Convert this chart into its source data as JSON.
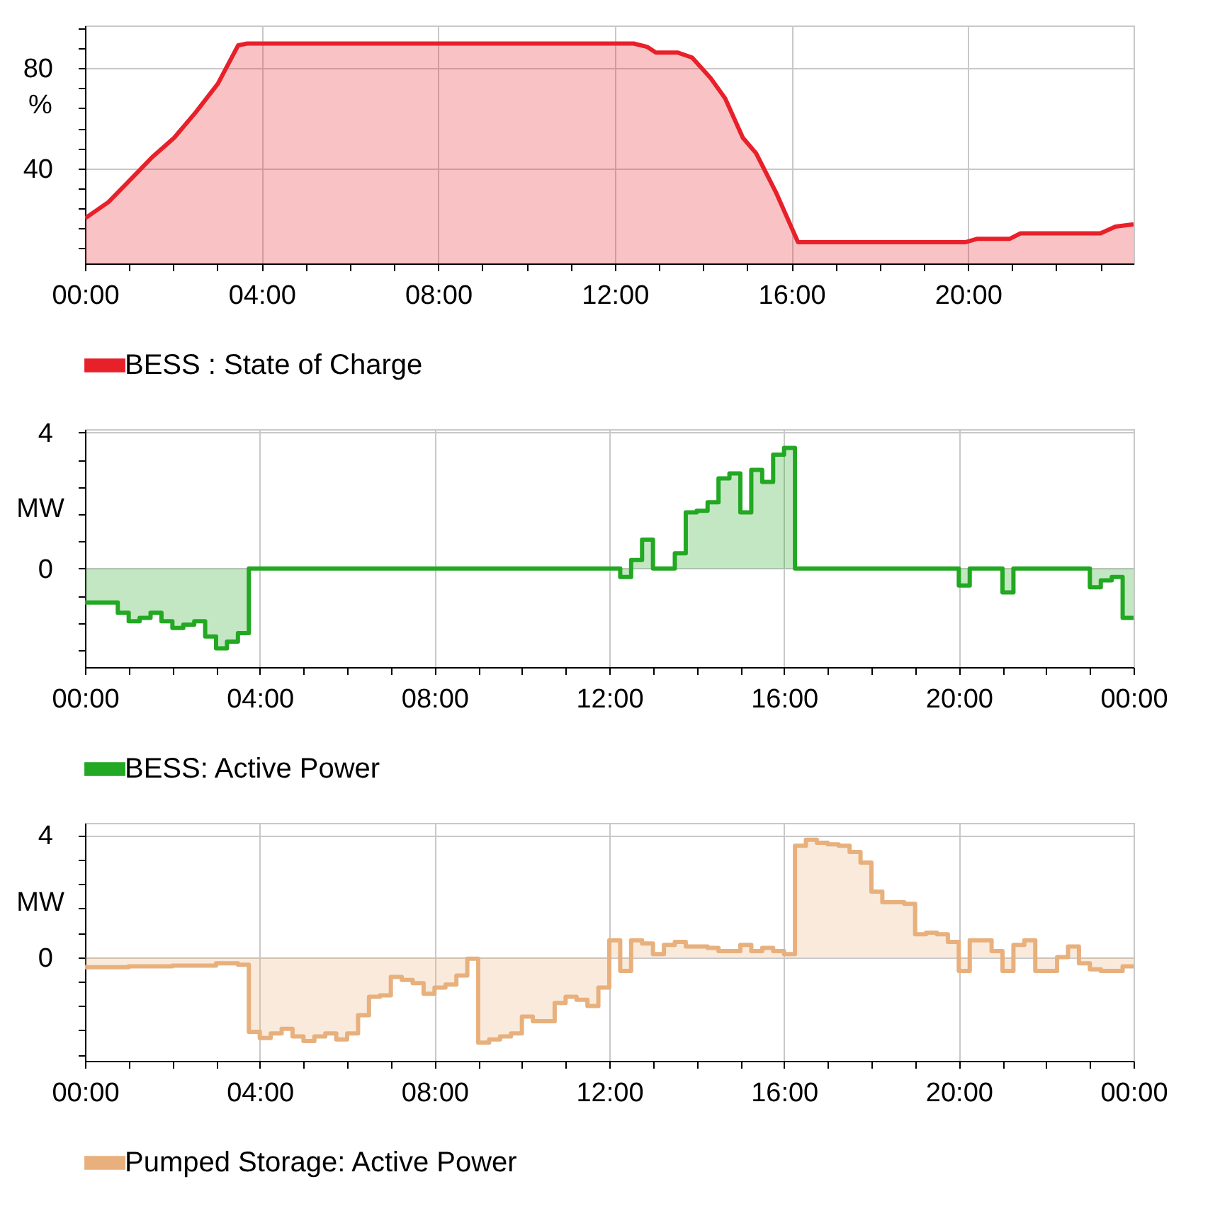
{
  "chart_data": [
    {
      "type": "area",
      "ylabel": "%",
      "legend": "bottom",
      "grid": true,
      "marker": "none",
      "line_style": "solid",
      "x": [
        0,
        0.53,
        1.02,
        1.52,
        2.02,
        2.51,
        3.01,
        3.47,
        3.67,
        12.43,
        12.73,
        12.93,
        13.42,
        13.75,
        14.17,
        14.5,
        14.9,
        15.2,
        15.65,
        16.15,
        19.95,
        20.2,
        20.94,
        21.19,
        23.0,
        23.34,
        23.75
      ],
      "series": [
        {
          "name": "BESS : State of Charge",
          "color": "#e8202a",
          "values": [
            20,
            26.5,
            35.3,
            44.4,
            52.2,
            62.4,
            73.8,
            89.1,
            89.8,
            89.8,
            88.5,
            86.2,
            86.2,
            84.2,
            76,
            67.9,
            52.2,
            46,
            30.4,
            10.5,
            10.5,
            11.8,
            11.8,
            14,
            14,
            16.7,
            17.6
          ]
        }
      ],
      "xlim": [
        0,
        23.75
      ],
      "xticks": [
        {
          "value": 0,
          "label": "00:00"
        },
        {
          "value": 1,
          "label": null
        },
        {
          "value": 2,
          "label": null
        },
        {
          "value": 3,
          "label": null
        },
        {
          "value": 4,
          "label": "04:00"
        },
        {
          "value": 5,
          "label": null
        },
        {
          "value": 6,
          "label": null
        },
        {
          "value": 7,
          "label": null
        },
        {
          "value": 8,
          "label": "08:00"
        },
        {
          "value": 9,
          "label": null
        },
        {
          "value": 10,
          "label": null
        },
        {
          "value": 11,
          "label": null
        },
        {
          "value": 12,
          "label": "12:00"
        },
        {
          "value": 13,
          "label": null
        },
        {
          "value": 14,
          "label": null
        },
        {
          "value": 15,
          "label": null
        },
        {
          "value": 16,
          "label": "16:00"
        },
        {
          "value": 17,
          "label": null
        },
        {
          "value": 18,
          "label": null
        },
        {
          "value": 19,
          "label": null
        },
        {
          "value": 20,
          "label": "20:00"
        },
        {
          "value": 21,
          "label": null
        },
        {
          "value": 22,
          "label": null
        },
        {
          "value": 23,
          "label": null
        }
      ],
      "ylim": [
        2,
        97
      ],
      "yticks": [
        {
          "value": 8,
          "label": null
        },
        {
          "value": 16,
          "label": null
        },
        {
          "value": 24,
          "label": null
        },
        {
          "value": 32,
          "label": null
        },
        40,
        {
          "value": 48,
          "label": null
        },
        {
          "value": 56,
          "label": null
        },
        {
          "value": 64,
          "label": null
        },
        {
          "value": 72,
          "label": null
        },
        80,
        {
          "value": 88,
          "label": null
        },
        {
          "value": 96,
          "label": null
        }
      ]
    },
    {
      "type": "step",
      "ylabel": "MW",
      "legend": "bottom",
      "grid": true,
      "marker": "none",
      "line_style": "solid",
      "x": [
        0,
        0.75,
        1.0,
        1.25,
        1.5,
        1.75,
        2.0,
        2.25,
        2.5,
        2.75,
        3.0,
        3.25,
        3.5,
        3.75,
        12.25,
        12.5,
        12.75,
        13.0,
        13.5,
        13.75,
        14.0,
        14.25,
        14.5,
        14.75,
        15.0,
        15.25,
        15.5,
        15.75,
        16.0,
        16.25,
        20.0,
        20.25,
        21.0,
        21.25,
        23.0,
        23.25,
        23.5,
        23.75,
        24
      ],
      "series": [
        {
          "name": "BESS: Active Power",
          "color": "#22a822",
          "values": [
            -1.0,
            -1.3,
            -1.55,
            -1.45,
            -1.3,
            -1.55,
            -1.75,
            -1.65,
            -1.55,
            -2.0,
            -2.35,
            -2.15,
            -1.9,
            0,
            -0.25,
            0.25,
            0.85,
            0,
            0.45,
            1.65,
            1.7,
            1.95,
            2.65,
            2.8,
            1.65,
            2.9,
            2.55,
            3.35,
            3.55,
            0,
            -0.5,
            0,
            -0.7,
            0,
            -0.55,
            -0.35,
            -0.25,
            -1.45,
            -1.45
          ]
        }
      ],
      "xlim": [
        0,
        24
      ],
      "xticks": [
        {
          "value": 0,
          "label": "00:00"
        },
        {
          "value": 1,
          "label": null
        },
        {
          "value": 2,
          "label": null
        },
        {
          "value": 3,
          "label": null
        },
        {
          "value": 4,
          "label": "04:00"
        },
        {
          "value": 5,
          "label": null
        },
        {
          "value": 6,
          "label": null
        },
        {
          "value": 7,
          "label": null
        },
        {
          "value": 8,
          "label": "08:00"
        },
        {
          "value": 9,
          "label": null
        },
        {
          "value": 10,
          "label": null
        },
        {
          "value": 11,
          "label": null
        },
        {
          "value": 12,
          "label": "12:00"
        },
        {
          "value": 13,
          "label": null
        },
        {
          "value": 14,
          "label": null
        },
        {
          "value": 15,
          "label": null
        },
        {
          "value": 16,
          "label": "16:00"
        },
        {
          "value": 17,
          "label": null
        },
        {
          "value": 18,
          "label": null
        },
        {
          "value": 19,
          "label": null
        },
        {
          "value": 20,
          "label": "20:00"
        },
        {
          "value": 21,
          "label": null
        },
        {
          "value": 22,
          "label": null
        },
        {
          "value": 23,
          "label": null
        },
        {
          "value": 24,
          "label": "00:00"
        }
      ],
      "ylim": [
        -2.9,
        4.1
      ],
      "yticks": [
        {
          "value": -2.4,
          "label": null
        },
        {
          "value": -1.6,
          "label": null
        },
        {
          "value": -0.8,
          "label": null
        },
        0,
        {
          "value": 0.8,
          "label": null
        },
        {
          "value": 1.6,
          "label": null
        },
        {
          "value": 2.4,
          "label": null
        },
        {
          "value": 3.2,
          "label": null
        },
        4
      ]
    },
    {
      "type": "step",
      "ylabel": "MW",
      "legend": "bottom",
      "grid": true,
      "marker": "none",
      "line_style": "solid",
      "x": [
        0,
        1,
        2,
        3,
        3.5,
        3.75,
        4.0,
        4.25,
        4.5,
        4.75,
        5.0,
        5.25,
        5.5,
        5.75,
        6.0,
        6.25,
        6.5,
        6.75,
        7.0,
        7.25,
        7.5,
        7.75,
        8.0,
        8.25,
        8.5,
        8.75,
        9.0,
        9.25,
        9.5,
        9.75,
        10.0,
        10.25,
        10.5,
        10.75,
        11.0,
        11.25,
        11.5,
        11.75,
        12.0,
        12.25,
        12.5,
        12.75,
        13.0,
        13.25,
        13.5,
        13.75,
        14.0,
        14.25,
        14.5,
        14.75,
        15.0,
        15.25,
        15.5,
        15.75,
        16.0,
        16.25,
        16.5,
        16.75,
        17.0,
        17.25,
        17.5,
        17.75,
        18.0,
        18.25,
        18.5,
        18.75,
        19.0,
        19.25,
        19.5,
        19.75,
        20.0,
        20.25,
        20.5,
        20.75,
        21.0,
        21.25,
        21.5,
        21.75,
        22.0,
        22.25,
        22.5,
        22.75,
        23.0,
        23.25,
        23.5,
        23.75,
        24
      ],
      "series": [
        {
          "name": "Pumped Storage: Active Power",
          "color": "#e8b07c",
          "values": [
            -0.33,
            -0.3,
            -0.28,
            -0.2,
            -0.25,
            -2.45,
            -2.65,
            -2.5,
            -2.35,
            -2.6,
            -2.75,
            -2.6,
            -2.5,
            -2.7,
            -2.5,
            -1.9,
            -1.3,
            -1.25,
            -0.65,
            -0.75,
            -0.85,
            -1.2,
            -1.0,
            -0.9,
            -0.6,
            -0.05,
            -2.8,
            -2.7,
            -2.6,
            -2.5,
            -1.95,
            -2.1,
            -2.1,
            -1.5,
            -1.3,
            -1.4,
            -1.6,
            -1.0,
            0.55,
            -0.45,
            0.55,
            0.45,
            0.1,
            0.4,
            0.5,
            0.35,
            0.35,
            0.3,
            0.2,
            0.2,
            0.4,
            0.2,
            0.3,
            0.2,
            0.1,
            3.65,
            3.85,
            3.75,
            3.7,
            3.65,
            3.45,
            3.1,
            2.15,
            1.8,
            1.8,
            1.75,
            0.75,
            0.8,
            0.75,
            0.5,
            -0.45,
            0.55,
            0.55,
            0.2,
            -0.45,
            0.4,
            0.55,
            -0.45,
            -0.45,
            0,
            0.35,
            -0.2,
            -0.4,
            -0.45,
            -0.45,
            -0.3,
            -0.3
          ]
        }
      ],
      "xlim": [
        0,
        24
      ],
      "xticks": [
        {
          "value": 0,
          "label": "00:00"
        },
        {
          "value": 1,
          "label": null
        },
        {
          "value": 2,
          "label": null
        },
        {
          "value": 3,
          "label": null
        },
        {
          "value": 4,
          "label": "04:00"
        },
        {
          "value": 5,
          "label": null
        },
        {
          "value": 6,
          "label": null
        },
        {
          "value": 7,
          "label": null
        },
        {
          "value": 8,
          "label": "08:00"
        },
        {
          "value": 9,
          "label": null
        },
        {
          "value": 10,
          "label": null
        },
        {
          "value": 11,
          "label": null
        },
        {
          "value": 12,
          "label": "12:00"
        },
        {
          "value": 13,
          "label": null
        },
        {
          "value": 14,
          "label": null
        },
        {
          "value": 15,
          "label": null
        },
        {
          "value": 16,
          "label": "16:00"
        },
        {
          "value": 17,
          "label": null
        },
        {
          "value": 18,
          "label": null
        },
        {
          "value": 19,
          "label": null
        },
        {
          "value": 20,
          "label": "20:00"
        },
        {
          "value": 21,
          "label": null
        },
        {
          "value": 22,
          "label": null
        },
        {
          "value": 23,
          "label": null
        },
        {
          "value": 24,
          "label": "00:00"
        }
      ],
      "ylim": [
        -3.4,
        4.4
      ],
      "yticks": [
        {
          "value": -3.2,
          "label": null
        },
        {
          "value": -2.4,
          "label": null
        },
        {
          "value": -1.6,
          "label": null
        },
        {
          "value": -0.8,
          "label": null
        },
        0,
        {
          "value": 0.8,
          "label": null
        },
        {
          "value": 1.6,
          "label": null
        },
        {
          "value": 2.4,
          "label": null
        },
        {
          "value": 3.2,
          "label": null
        },
        4
      ]
    }
  ]
}
